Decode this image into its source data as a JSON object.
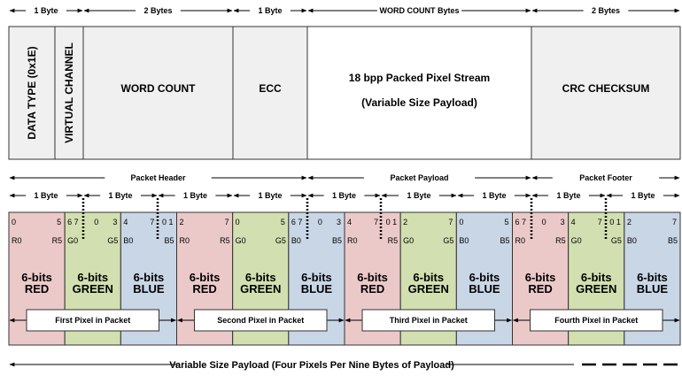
{
  "top_row": {
    "segments": [
      {
        "label": "1 Byte"
      },
      {
        "label": "2 Bytes"
      },
      {
        "label": "1 Byte"
      },
      {
        "label": "WORD COUNT Bytes"
      },
      {
        "label": "2 Bytes"
      }
    ],
    "fields": [
      {
        "label": "DATA TYPE (0x1E)",
        "vertical": true,
        "color": "#f0f0f0"
      },
      {
        "label": "VIRTUAL CHANNEL",
        "vertical": true,
        "color": "#f0f0f0"
      },
      {
        "label": "WORD COUNT",
        "color": "#f0f0f0"
      },
      {
        "label": "ECC",
        "color": "#f0f0f0"
      },
      {
        "label": "18 bpp Packed Pixel Stream",
        "label2": "(Variable Size Payload)",
        "color": "#ffffff"
      },
      {
        "label": "CRC CHECKSUM",
        "color": "#f0f0f0"
      }
    ]
  },
  "sections": [
    {
      "label": "Packet Header"
    },
    {
      "label": "Packet Payload"
    },
    {
      "label": "Packet Footer"
    }
  ],
  "byte_label": "1 Byte",
  "byte_count": 9,
  "colors": {
    "red": "#ecc9c9",
    "green": "#d2dfb0",
    "blue": "#c9d6e6",
    "border": "#333333"
  },
  "cells": [
    {
      "channel": "red",
      "bits": [
        "0",
        "",
        "5"
      ],
      "lo": "R0",
      "hi": "R5",
      "title": "6-bits",
      "name": "RED"
    },
    {
      "channel": "green",
      "bits": [
        "6 7",
        "0",
        "3"
      ],
      "lo": "G0",
      "hi": "G5",
      "title": "6-bits",
      "name": "GREEN"
    },
    {
      "channel": "blue",
      "bits": [
        "4",
        "7",
        "0 1"
      ],
      "lo": "B0",
      "hi": "B5",
      "title": "6-bits",
      "name": "BLUE"
    },
    {
      "channel": "red",
      "bits": [
        "2",
        "",
        "7"
      ],
      "lo": "R0",
      "hi": "R5",
      "title": "6-bits",
      "name": "RED"
    },
    {
      "channel": "green",
      "bits": [
        "0",
        "",
        "5"
      ],
      "lo": "G0",
      "hi": "G5",
      "title": "6-bits",
      "name": "GREEN"
    },
    {
      "channel": "blue",
      "bits": [
        "6 7",
        "0",
        "3"
      ],
      "lo": "B0",
      "hi": "B5",
      "title": "6-bits",
      "name": "BLUE"
    },
    {
      "channel": "red",
      "bits": [
        "4",
        "7",
        "0 1"
      ],
      "lo": "R0",
      "hi": "R5",
      "title": "6-bits",
      "name": "RED"
    },
    {
      "channel": "green",
      "bits": [
        "2",
        "",
        "7"
      ],
      "lo": "G0",
      "hi": "G5",
      "title": "6-bits",
      "name": "GREEN"
    },
    {
      "channel": "blue",
      "bits": [
        "0",
        "",
        "5"
      ],
      "lo": "B0",
      "hi": "B5",
      "title": "6-bits",
      "name": "BLUE"
    },
    {
      "channel": "red",
      "bits": [
        "6 7",
        "0",
        "3"
      ],
      "lo": "R0",
      "hi": "R5",
      "title": "6-bits",
      "name": "RED"
    },
    {
      "channel": "green",
      "bits": [
        "4",
        "7",
        "0 1"
      ],
      "lo": "G0",
      "hi": "G5",
      "title": "6-bits",
      "name": "GREEN"
    },
    {
      "channel": "blue",
      "bits": [
        "2",
        "",
        "7"
      ],
      "lo": "B0",
      "hi": "B5",
      "title": "6-bits",
      "name": "BLUE"
    }
  ],
  "pixels": [
    {
      "label": "First Pixel in Packet"
    },
    {
      "label": "Second Pixel in Packet"
    },
    {
      "label": "Third Pixel in Packet"
    },
    {
      "label": "Fourth Pixel in Packet"
    }
  ],
  "footer": {
    "label": "Variable Size Payload  (Four Pixels Per Nine Bytes of Payload)"
  }
}
